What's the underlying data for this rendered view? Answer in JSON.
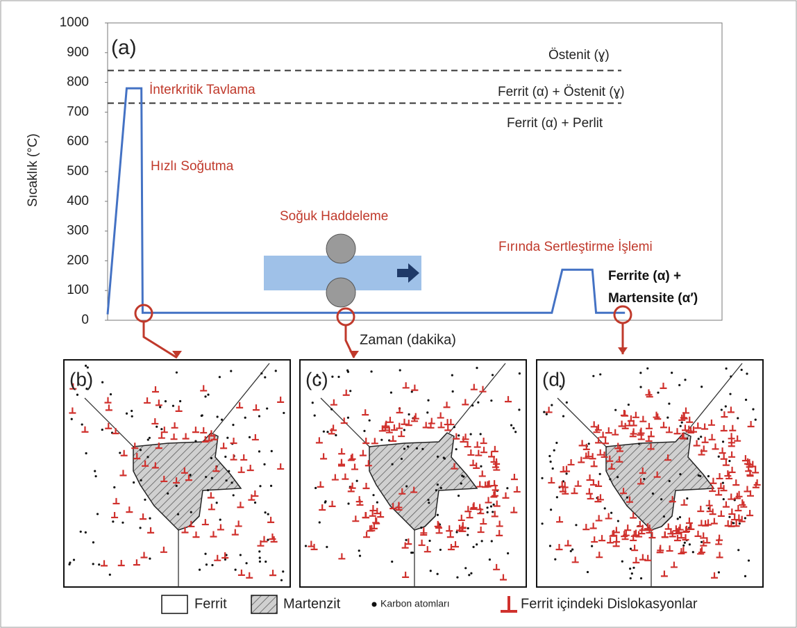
{
  "chart_data": {
    "type": "line",
    "title": "(a)",
    "x_label": "Zaman (dakika)",
    "y_label": "Sıcaklık (°C)",
    "x": [
      0,
      3.1,
      5.5,
      5.7,
      72.3,
      74.0,
      78.9,
      79.5,
      84.2
    ],
    "xlim": [
      0,
      100
    ],
    "ylim": [
      0,
      1000
    ],
    "yticks": [
      0,
      100,
      200,
      300,
      400,
      500,
      600,
      700,
      800,
      900,
      1000
    ],
    "series": [
      {
        "color": "#4472c4",
        "values": [
          20,
          780,
          780,
          25,
          25,
          170,
          170,
          25,
          25
        ]
      }
    ],
    "reference_lines": [
      840,
      730
    ],
    "annotations": [
      "Östenit (ɣ)",
      "İnterkritik Tavlama",
      "Ferrit (α) + Östenit (ɣ)",
      "Ferrit (α) + Perlit",
      "Hızlı Soğutma",
      "Soğuk Haddeleme",
      "Fırında Sertleştirme İşlemi",
      "Ferrite (α) +",
      "Martensite (α′)"
    ]
  },
  "panels": [
    "(b)",
    "(c)",
    "(d)"
  ],
  "legend": [
    "Ferrit",
    "Martenzit",
    "Karbon atomları",
    "Ferrit içindeki Dislokasyonlar"
  ]
}
